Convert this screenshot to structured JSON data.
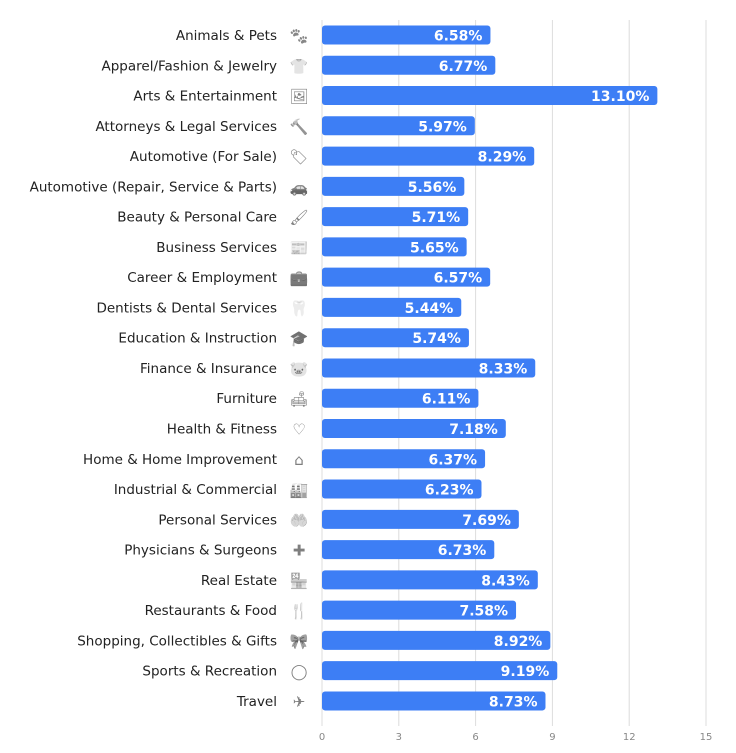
{
  "chart_data": {
    "type": "bar",
    "orientation": "horizontal",
    "categories": [
      "Animals & Pets",
      "Apparel/Fashion & Jewelry",
      "Arts & Entertainment",
      "Attorneys & Legal Services",
      "Automotive (For Sale)",
      "Automotive (Repair, Service & Parts)",
      "Beauty & Personal Care",
      "Business Services",
      "Career & Employment",
      "Dentists & Dental Services",
      "Education & Instruction",
      "Finance & Insurance",
      "Furniture",
      "Health & Fitness",
      "Home & Home Improvement",
      "Industrial & Commercial",
      "Personal Services",
      "Physicians & Surgeons",
      "Real Estate",
      "Restaurants & Food",
      "Shopping, Collectibles & Gifts",
      "Sports & Recreation",
      "Travel"
    ],
    "icons": [
      "paw-icon",
      "shirt-icon",
      "picture-icon",
      "gavel-icon",
      "car-tag-icon",
      "car-icon",
      "brush-icon",
      "newspaper-icon",
      "briefcase-icon",
      "tooth-icon",
      "graduation-cap-icon",
      "piggy-bank-icon",
      "armchair-icon",
      "heart-icon",
      "house-icon",
      "factory-icon",
      "hand-heart-icon",
      "cross-icon",
      "storefront-icon",
      "utensils-icon",
      "gift-icon",
      "ball-icon",
      "plane-icon"
    ],
    "icon_glyphs": [
      "🐾",
      "👕",
      "🖼",
      "🔨",
      "🏷",
      "🚗",
      "🖌",
      "📰",
      "💼",
      "🦷",
      "🎓",
      "🐷",
      "🛋",
      "♡",
      "⌂",
      "🏭",
      "🤲",
      "✚",
      "🏪",
      "🍴",
      "🎀",
      "◯",
      "✈"
    ],
    "values": [
      6.58,
      6.77,
      13.1,
      5.97,
      8.29,
      5.56,
      5.71,
      5.65,
      6.57,
      5.44,
      5.74,
      8.33,
      6.11,
      7.18,
      6.37,
      6.23,
      7.69,
      6.73,
      8.43,
      7.58,
      8.92,
      9.19,
      8.73
    ],
    "data_labels": [
      "6.58%",
      "6.77%",
      "13.10%",
      "5.97%",
      "8.29%",
      "5.56%",
      "5.71%",
      "5.65%",
      "6.57%",
      "5.44%",
      "5.74%",
      "8.33%",
      "6.11%",
      "7.18%",
      "6.37%",
      "6.23%",
      "7.69%",
      "6.73%",
      "8.43%",
      "7.58%",
      "8.92%",
      "9.19%",
      "8.73%"
    ],
    "xlim": [
      0,
      15
    ],
    "xticks": [
      "0",
      "3",
      "6",
      "9",
      "12",
      "15"
    ],
    "grid": true,
    "bar_color": "#3d7ef5",
    "title": "",
    "xlabel": "",
    "ylabel": ""
  }
}
